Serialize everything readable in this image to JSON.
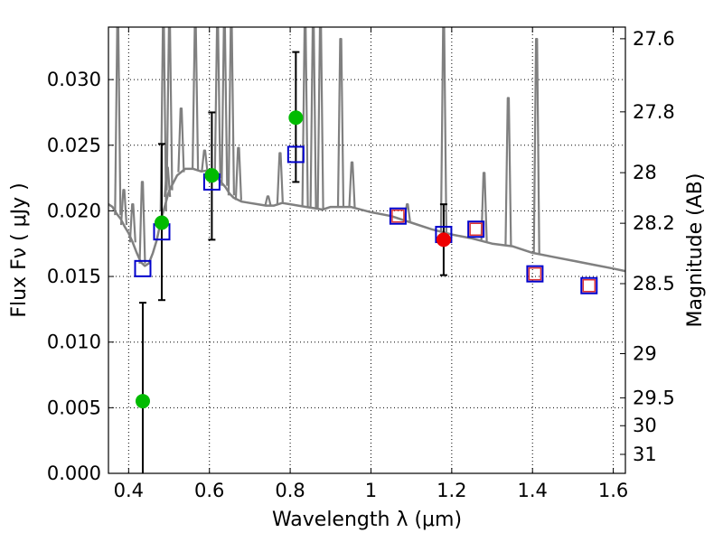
{
  "chart_data": {
    "type": "scatter",
    "xlabel": "Wavelength  λ (μm)",
    "ylabel": "Flux  Fν  ( μJy )",
    "y2label": "Magnitude (AB)",
    "xlim": [
      0.35,
      1.63
    ],
    "ylim": [
      0.0,
      0.034
    ],
    "grid": true,
    "x_ticks": [
      0.4,
      0.6,
      0.8,
      1.0,
      1.2,
      1.4,
      1.6
    ],
    "x_tick_labels": [
      "0.4",
      "0.6",
      "0.8",
      "1",
      "1.2",
      "1.4",
      "1.6"
    ],
    "y_ticks": [
      0.0,
      0.005,
      0.01,
      0.015,
      0.02,
      0.025,
      0.03
    ],
    "y_tick_labels": [
      "0.000",
      "0.005",
      "0.010",
      "0.015",
      "0.020",
      "0.025",
      "0.030"
    ],
    "y2_tick_labels": [
      "27.6",
      "27.8",
      "28",
      "28.2",
      "28.5",
      "29",
      "29.5",
      "30",
      "31"
    ],
    "series": [
      {
        "name": "observed (green)",
        "marker": "circle",
        "color": "#00bb00",
        "points": [
          {
            "x": 0.435,
            "y": 0.0055,
            "err_low": 0.0055,
            "err_high": 0.0075
          },
          {
            "x": 0.482,
            "y": 0.0191,
            "err_low": 0.0059,
            "err_high": 0.006
          },
          {
            "x": 0.606,
            "y": 0.0227,
            "err_low": 0.0049,
            "err_high": 0.0048
          },
          {
            "x": 0.814,
            "y": 0.0271,
            "err_low": 0.0049,
            "err_high": 0.005
          }
        ]
      },
      {
        "name": "observed (red)",
        "marker": "circle",
        "color": "#ee0000",
        "points": [
          {
            "x": 1.18,
            "y": 0.0178,
            "err_low": 0.0027,
            "err_high": 0.0027
          }
        ]
      },
      {
        "name": "model photometry (blue)",
        "marker": "square",
        "color": "#0000cc",
        "points": [
          {
            "x": 0.435,
            "y": 0.0156
          },
          {
            "x": 0.482,
            "y": 0.0184
          },
          {
            "x": 0.606,
            "y": 0.0222
          },
          {
            "x": 0.814,
            "y": 0.0243
          },
          {
            "x": 1.067,
            "y": 0.0196
          },
          {
            "x": 1.18,
            "y": 0.0182
          },
          {
            "x": 1.26,
            "y": 0.0186
          },
          {
            "x": 1.406,
            "y": 0.0152
          },
          {
            "x": 1.54,
            "y": 0.0143
          }
        ]
      },
      {
        "name": "model photometry (red inner)",
        "marker": "square",
        "color": "#dd3333",
        "points": [
          {
            "x": 1.067,
            "y": 0.0196
          },
          {
            "x": 1.26,
            "y": 0.0186
          },
          {
            "x": 1.406,
            "y": 0.0152
          },
          {
            "x": 1.54,
            "y": 0.0143
          }
        ]
      },
      {
        "name": "template SED",
        "marker": "line",
        "color": "#808080",
        "x": [
          0.35,
          0.36,
          0.37,
          0.38,
          0.39,
          0.4,
          0.41,
          0.42,
          0.43,
          0.44,
          0.45,
          0.46,
          0.47,
          0.48,
          0.5,
          0.52,
          0.54,
          0.56,
          0.58,
          0.6,
          0.62,
          0.64,
          0.65,
          0.66,
          0.68,
          0.7,
          0.72,
          0.74,
          0.76,
          0.78,
          0.8,
          0.82,
          0.84,
          0.86,
          0.88,
          0.9,
          0.95,
          1.0,
          1.05,
          1.1,
          1.15,
          1.2,
          1.25,
          1.3,
          1.35,
          1.4,
          1.45,
          1.5,
          1.55,
          1.6,
          1.63
        ],
        "y": [
          0.0205,
          0.0203,
          0.0198,
          0.0194,
          0.0188,
          0.0183,
          0.0176,
          0.0168,
          0.0161,
          0.0158,
          0.016,
          0.0168,
          0.0178,
          0.0193,
          0.0215,
          0.0227,
          0.0232,
          0.0232,
          0.023,
          0.0231,
          0.0225,
          0.0218,
          0.0213,
          0.021,
          0.0207,
          0.0206,
          0.0205,
          0.0204,
          0.0204,
          0.0206,
          0.0205,
          0.0204,
          0.0203,
          0.0202,
          0.0201,
          0.0203,
          0.0203,
          0.0199,
          0.0196,
          0.0191,
          0.0186,
          0.0182,
          0.0179,
          0.0175,
          0.0173,
          0.0168,
          0.0165,
          0.0162,
          0.0159,
          0.0156,
          0.0154
        ],
        "emission_lines": [
          {
            "x": 0.373,
            "peak": 0.034
          },
          {
            "x": 0.388,
            "peak": 0.0216
          },
          {
            "x": 0.41,
            "peak": 0.0205
          },
          {
            "x": 0.434,
            "peak": 0.0222
          },
          {
            "x": 0.486,
            "peak": 0.034
          },
          {
            "x": 0.496,
            "peak": 0.0233
          },
          {
            "x": 0.501,
            "peak": 0.034
          },
          {
            "x": 0.53,
            "peak": 0.0278
          },
          {
            "x": 0.565,
            "peak": 0.034
          },
          {
            "x": 0.588,
            "peak": 0.0246
          },
          {
            "x": 0.62,
            "peak": 0.034
          },
          {
            "x": 0.637,
            "peak": 0.034
          },
          {
            "x": 0.654,
            "peak": 0.034
          },
          {
            "x": 0.672,
            "peak": 0.0248
          },
          {
            "x": 0.745,
            "peak": 0.0211
          },
          {
            "x": 0.775,
            "peak": 0.0244
          },
          {
            "x": 0.837,
            "peak": 0.034
          },
          {
            "x": 0.857,
            "peak": 0.034
          },
          {
            "x": 0.875,
            "peak": 0.034
          },
          {
            "x": 0.925,
            "peak": 0.0331
          },
          {
            "x": 0.953,
            "peak": 0.0237
          },
          {
            "x": 1.09,
            "peak": 0.0205
          },
          {
            "x": 1.18,
            "peak": 0.034
          },
          {
            "x": 1.28,
            "peak": 0.0229
          },
          {
            "x": 1.34,
            "peak": 0.0286
          },
          {
            "x": 1.41,
            "peak": 0.0331
          }
        ]
      }
    ]
  },
  "colors": {
    "model_line": "#808080",
    "green_marker": "#00bb00",
    "red_marker": "#ee0000",
    "blue_square": "#0000cc",
    "red_square": "#dd3333"
  }
}
